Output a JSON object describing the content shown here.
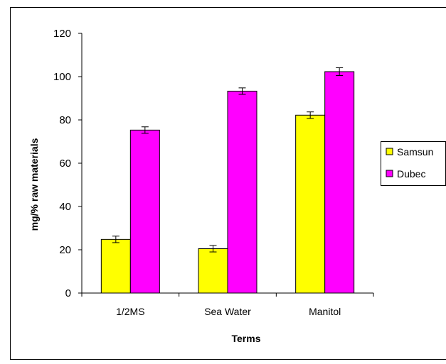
{
  "chart_data": {
    "type": "bar",
    "title": "",
    "xlabel": "Terms",
    "ylabel": "mg/% raw materials",
    "ylim": [
      0,
      120
    ],
    "yticks": [
      0,
      20,
      40,
      60,
      80,
      100,
      120
    ],
    "categories": [
      "1/2MS",
      "Sea Water",
      "Manitol"
    ],
    "series": [
      {
        "name": "Samsun",
        "color": "#ffff00",
        "values": [
          24.8,
          20.5,
          82.2
        ],
        "errors": [
          1.5,
          1.5,
          1.5
        ]
      },
      {
        "name": "Dubec",
        "color": "#ff00ff",
        "values": [
          75.3,
          93.3,
          102.3
        ],
        "errors": [
          1.5,
          1.5,
          1.8
        ]
      }
    ],
    "grid": false,
    "legend_position": "right"
  }
}
